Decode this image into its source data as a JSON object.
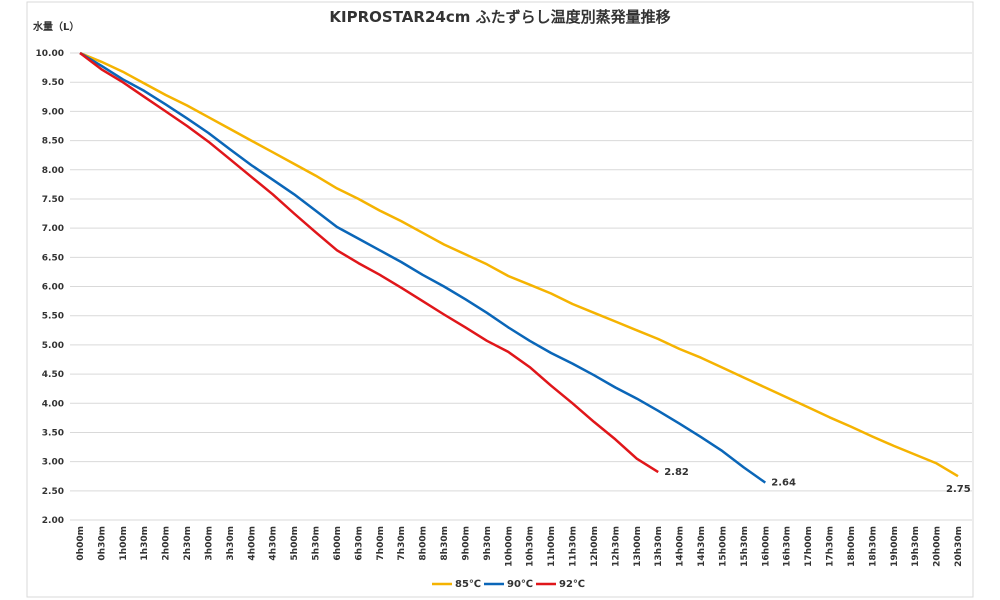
{
  "chart_data": {
    "type": "line",
    "title": "KIPROSTAR24cm ふたずらし温度別蒸発量推移",
    "y_label": "水量（L）",
    "categories": [
      "0h00m",
      "0h30m",
      "1h00m",
      "1h30m",
      "2h00m",
      "2h30m",
      "3h00m",
      "3h30m",
      "4h00m",
      "4h30m",
      "5h00m",
      "5h30m",
      "6h00m",
      "6h30m",
      "7h00m",
      "7h30m",
      "8h00m",
      "8h30m",
      "9h00m",
      "9h30m",
      "10h00m",
      "10h30m",
      "11h00m",
      "11h30m",
      "12h00m",
      "12h30m",
      "13h00m",
      "13h30m",
      "14h00m",
      "14h30m",
      "15h00m",
      "15h30m",
      "16h00m",
      "16h30m",
      "17h00m",
      "17h30m",
      "18h00m",
      "18h30m",
      "19h00m",
      "19h30m",
      "20h00m",
      "20h30m"
    ],
    "series": [
      {
        "name": "85℃",
        "color": "#f5b301",
        "values": [
          10.0,
          9.85,
          9.68,
          9.48,
          9.28,
          9.1,
          8.9,
          8.7,
          8.5,
          8.3,
          8.1,
          7.9,
          7.68,
          7.5,
          7.3,
          7.12,
          6.92,
          6.72,
          6.55,
          6.38,
          6.18,
          6.03,
          5.88,
          5.7,
          5.55,
          5.4,
          5.25,
          5.1,
          4.93,
          4.78,
          4.61,
          4.44,
          4.27,
          4.1,
          3.93,
          3.76,
          3.6,
          3.43,
          3.27,
          3.12,
          2.97,
          2.75
        ]
      },
      {
        "name": "90℃",
        "color": "#0a66b8",
        "values": [
          10.0,
          9.78,
          9.55,
          9.35,
          9.12,
          8.88,
          8.63,
          8.35,
          8.08,
          7.83,
          7.58,
          7.3,
          7.02,
          6.82,
          6.62,
          6.42,
          6.2,
          6.0,
          5.78,
          5.55,
          5.3,
          5.07,
          4.86,
          4.68,
          4.48,
          4.27,
          4.08,
          3.87,
          3.65,
          3.42,
          3.18,
          2.9,
          2.64,
          null,
          null,
          null,
          null,
          null,
          null,
          null,
          null,
          null
        ]
      },
      {
        "name": "92℃",
        "color": "#e0161a",
        "values": [
          10.0,
          9.72,
          9.5,
          9.25,
          9.0,
          8.75,
          8.48,
          8.18,
          7.88,
          7.58,
          7.25,
          6.93,
          6.62,
          6.4,
          6.2,
          5.98,
          5.75,
          5.52,
          5.3,
          5.07,
          4.88,
          4.62,
          4.3,
          4.0,
          3.68,
          3.38,
          3.05,
          2.82,
          null,
          null,
          null,
          null,
          null,
          null,
          null,
          null,
          null,
          null,
          null,
          null,
          null,
          null
        ]
      }
    ],
    "ylim": [
      2,
      10
    ],
    "yticks": [
      {
        "value": 2,
        "label": "2.00"
      },
      {
        "value": 2.5,
        "label": "2.50"
      },
      {
        "value": 3,
        "label": "3.00"
      },
      {
        "value": 3.5,
        "label": "3.50"
      },
      {
        "value": 4,
        "label": "4.00"
      },
      {
        "value": 4.5,
        "label": "4.50"
      },
      {
        "value": 5,
        "label": "5.00"
      },
      {
        "value": 5.5,
        "label": "5.50"
      },
      {
        "value": 6,
        "label": "6.00"
      },
      {
        "value": 6.5,
        "label": "6.50"
      },
      {
        "value": 7,
        "label": "7.00"
      },
      {
        "value": 7.5,
        "label": "7.50"
      },
      {
        "value": 8,
        "label": "8.00"
      },
      {
        "value": 8.5,
        "label": "8.50"
      },
      {
        "value": 9,
        "label": "9.00"
      },
      {
        "value": 9.5,
        "label": "9.50"
      },
      {
        "value": 10,
        "label": "10.00"
      }
    ],
    "grid": true,
    "legend": "bottom"
  }
}
